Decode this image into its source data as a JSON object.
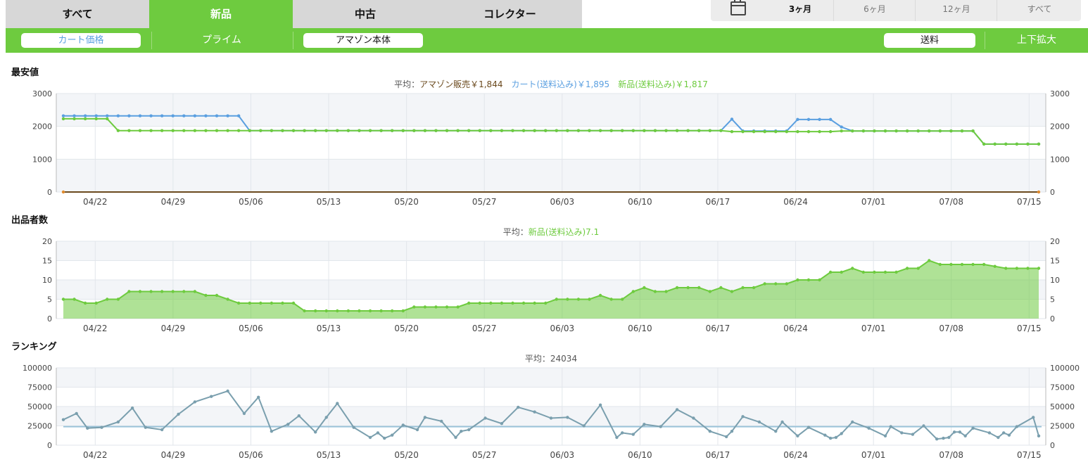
{
  "condition_tabs": [
    "すべて",
    "新品",
    "中古",
    "コレクター"
  ],
  "selected_condition": "新品",
  "range_tabs": [
    "3ヶ月",
    "6ヶ月",
    "12ヶ月",
    "すべて"
  ],
  "selected_range": "3ヶ月",
  "toggles": {
    "cart_price": "カート価格",
    "prime": "プライム",
    "amazon": "アマゾン本体",
    "shipping": "送料",
    "zoom": "上下拡大"
  },
  "colors": {
    "green": "#6ecb3f",
    "blue": "#5a9fe0",
    "amazon": "#6b4a1e",
    "rank": "#7a9fae",
    "rank_avg": "#9bc3d9"
  },
  "chart_data": [
    {
      "type": "line",
      "title": "最安値",
      "legend": {
        "prefix": "平均：",
        "items": [
          {
            "label": "アマゾン販売￥1,844",
            "color": "amazon"
          },
          {
            "label": "カート(送料込み)￥1,895",
            "color": "blue"
          },
          {
            "label": "新品(送料込み)￥1,817",
            "color": "green"
          }
        ]
      },
      "x_ticks": [
        "04/22",
        "04/29",
        "05/06",
        "05/13",
        "05/20",
        "05/27",
        "06/03",
        "06/10",
        "06/17",
        "06/24",
        "07/01",
        "07/08",
        "07/15"
      ],
      "y_ticks": [
        "0",
        "1000",
        "2000",
        "3000"
      ],
      "ylim": [
        0,
        3000
      ],
      "xlim": [
        0,
        89
      ],
      "series": [
        {
          "name": "カート(送料込み)",
          "color": "blue",
          "points": [
            [
              0,
              2320
            ],
            [
              16,
              2320
            ],
            [
              17,
              1870
            ],
            [
              60,
              1870
            ],
            [
              61,
              2220
            ],
            [
              62,
              1860
            ],
            [
              66,
              1860
            ],
            [
              67,
              2210
            ],
            [
              70,
              2210
            ],
            [
              71,
              1980
            ],
            [
              72,
              1860
            ],
            [
              83,
              1860
            ],
            [
              84,
              1460
            ],
            [
              89,
              1460
            ]
          ]
        },
        {
          "name": "新品(送料込み)",
          "color": "green",
          "points": [
            [
              0,
              2230
            ],
            [
              4,
              2230
            ],
            [
              5,
              1870
            ],
            [
              60,
              1870
            ],
            [
              61,
              1840
            ],
            [
              70,
              1840
            ],
            [
              71,
              1860
            ],
            [
              83,
              1860
            ],
            [
              84,
              1460
            ],
            [
              89,
              1460
            ]
          ]
        },
        {
          "name": "アマゾン販売",
          "color": "amazon",
          "points": [
            [
              0,
              0
            ],
            [
              89,
              0
            ]
          ]
        }
      ]
    },
    {
      "type": "area",
      "title": "出品者数",
      "legend": {
        "prefix": "平均：",
        "items": [
          {
            "label": "新品(送料込み)7.1",
            "color": "green"
          }
        ]
      },
      "x_ticks": [
        "04/22",
        "04/29",
        "05/06",
        "05/13",
        "05/20",
        "05/27",
        "06/03",
        "06/10",
        "06/17",
        "06/24",
        "07/01",
        "07/08",
        "07/15"
      ],
      "y_ticks": [
        "0",
        "5",
        "10",
        "15",
        "20"
      ],
      "ylim": [
        0,
        20
      ],
      "xlim": [
        0,
        89
      ],
      "series": [
        {
          "name": "新品(送料込み)",
          "color": "green",
          "points": [
            [
              0,
              5
            ],
            [
              1,
              5
            ],
            [
              2,
              4
            ],
            [
              3,
              4
            ],
            [
              4,
              5
            ],
            [
              5,
              5
            ],
            [
              6,
              7
            ],
            [
              12,
              7
            ],
            [
              13,
              6
            ],
            [
              14,
              6
            ],
            [
              15,
              5
            ],
            [
              16,
              4
            ],
            [
              21,
              4
            ],
            [
              22,
              2
            ],
            [
              31,
              2
            ],
            [
              32,
              3
            ],
            [
              36,
              3
            ],
            [
              37,
              4
            ],
            [
              44,
              4
            ],
            [
              45,
              5
            ],
            [
              48,
              5
            ],
            [
              49,
              6
            ],
            [
              50,
              5
            ],
            [
              51,
              5
            ],
            [
              52,
              7
            ],
            [
              53,
              8
            ],
            [
              54,
              7
            ],
            [
              55,
              7
            ],
            [
              56,
              8
            ],
            [
              58,
              8
            ],
            [
              59,
              7
            ],
            [
              60,
              8
            ],
            [
              61,
              7
            ],
            [
              62,
              8
            ],
            [
              63,
              8
            ],
            [
              64,
              9
            ],
            [
              66,
              9
            ],
            [
              67,
              10
            ],
            [
              69,
              10
            ],
            [
              70,
              12
            ],
            [
              71,
              12
            ],
            [
              72,
              13
            ],
            [
              73,
              12
            ],
            [
              76,
              12
            ],
            [
              77,
              13
            ],
            [
              78,
              13
            ],
            [
              79,
              15
            ],
            [
              80,
              14
            ],
            [
              84,
              14
            ],
            [
              86,
              13
            ],
            [
              89,
              13
            ]
          ]
        }
      ]
    },
    {
      "type": "line",
      "title": "ランキング",
      "legend": {
        "prefix": "平均：",
        "items": [
          {
            "label": "24034",
            "color": "text"
          }
        ]
      },
      "x_ticks": [
        "04/22",
        "04/29",
        "05/06",
        "05/13",
        "05/20",
        "05/27",
        "06/03",
        "06/10",
        "06/17",
        "06/24",
        "07/01",
        "07/08",
        "07/15"
      ],
      "y_ticks": [
        "0",
        "25000",
        "50000",
        "75000",
        "100000"
      ],
      "ylim": [
        0,
        100000
      ],
      "xlim": [
        0,
        89
      ],
      "average": 24034,
      "series": [
        {
          "name": "ランキング",
          "color": "rank",
          "points": [
            [
              0,
              33000
            ],
            [
              1.2,
              41000
            ],
            [
              2.2,
              22000
            ],
            [
              3.5,
              23000
            ],
            [
              5,
              30000
            ],
            [
              6.3,
              48000
            ],
            [
              7.5,
              23000
            ],
            [
              9,
              20000
            ],
            [
              10.5,
              40000
            ],
            [
              12,
              56000
            ],
            [
              13.5,
              63000
            ],
            [
              15,
              70000
            ],
            [
              16.5,
              41000
            ],
            [
              17.8,
              62000
            ],
            [
              19,
              18000
            ],
            [
              20.5,
              27000
            ],
            [
              21.5,
              38000
            ],
            [
              23,
              17000
            ],
            [
              24,
              36000
            ],
            [
              25,
              54000
            ],
            [
              26.5,
              23000
            ],
            [
              28,
              10000
            ],
            [
              28.7,
              16000
            ],
            [
              29.3,
              9000
            ],
            [
              30,
              13000
            ],
            [
              31,
              26000
            ],
            [
              32.3,
              20000
            ],
            [
              33,
              36000
            ],
            [
              34.5,
              31000
            ],
            [
              35.8,
              10000
            ],
            [
              36.3,
              18000
            ],
            [
              37,
              20000
            ],
            [
              38.5,
              35000
            ],
            [
              40,
              28000
            ],
            [
              41.5,
              49000
            ],
            [
              43,
              43000
            ],
            [
              44.5,
              35000
            ],
            [
              46,
              36000
            ],
            [
              47.5,
              25000
            ],
            [
              49,
              52000
            ],
            [
              50.5,
              10000
            ],
            [
              51,
              16000
            ],
            [
              52,
              14000
            ],
            [
              53,
              27000
            ],
            [
              54.5,
              24000
            ],
            [
              56,
              46000
            ],
            [
              57.5,
              35000
            ],
            [
              59,
              18000
            ],
            [
              60.5,
              11000
            ],
            [
              61,
              18000
            ],
            [
              62,
              37000
            ],
            [
              63.5,
              30000
            ],
            [
              65,
              18000
            ],
            [
              65.6,
              30000
            ],
            [
              67,
              12000
            ],
            [
              68,
              23000
            ],
            [
              69.5,
              13000
            ],
            [
              70,
              9000
            ],
            [
              70.5,
              10000
            ],
            [
              71,
              15000
            ],
            [
              72,
              30000
            ],
            [
              73.5,
              22000
            ],
            [
              75,
              12000
            ],
            [
              75.5,
              24000
            ],
            [
              76.5,
              16000
            ],
            [
              77.5,
              14000
            ],
            [
              78.5,
              25000
            ],
            [
              79.7,
              8000
            ],
            [
              80.3,
              9000
            ],
            [
              80.8,
              10000
            ],
            [
              81.3,
              17000
            ],
            [
              81.8,
              17000
            ],
            [
              82.3,
              12000
            ],
            [
              83,
              22000
            ],
            [
              84.5,
              16000
            ],
            [
              85.3,
              10000
            ],
            [
              85.8,
              16000
            ],
            [
              86.3,
              13000
            ],
            [
              87,
              24000
            ],
            [
              88.5,
              36000
            ],
            [
              89,
              12000
            ]
          ]
        }
      ]
    }
  ]
}
